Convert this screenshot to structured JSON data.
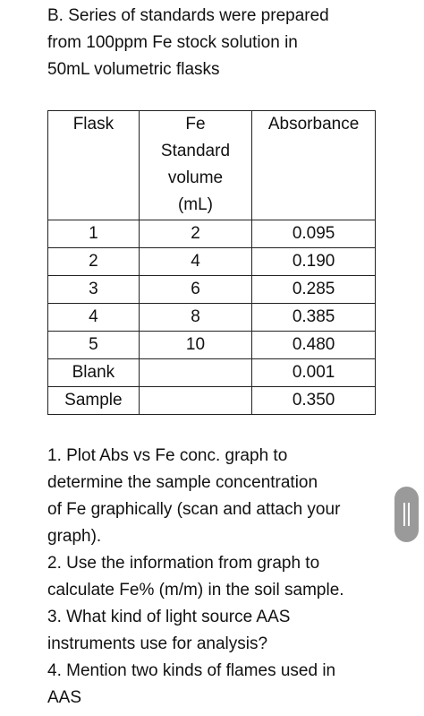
{
  "intro": {
    "lines": [
      "B. Series of standards were prepared",
      "from 100ppm Fe stock solution in",
      "50mL volumetric flasks"
    ]
  },
  "table": {
    "headers": [
      [
        "Flask"
      ],
      [
        "Fe",
        "Standard",
        "volume",
        "(mL)"
      ],
      [
        "Absorbance"
      ]
    ],
    "rows": [
      [
        "1",
        "2",
        "0.095"
      ],
      [
        "2",
        "4",
        "0.190"
      ],
      [
        "3",
        "6",
        "0.285"
      ],
      [
        "4",
        "8",
        "0.385"
      ],
      [
        "5",
        "10",
        "0.480"
      ],
      [
        "Blank",
        null,
        "0.001"
      ],
      [
        "Sample",
        null,
        "0.350"
      ]
    ]
  },
  "questions": [
    {
      "lines": [
        "1. Plot  Abs vs Fe conc. graph to",
        "determine the sample concentration",
        "of Fe graphically (scan and attach your",
        "graph)."
      ]
    },
    {
      "lines": [
        "2. Use the information from graph to",
        "calculate Fe% (m/m) in the soil sample."
      ]
    },
    {
      "lines": [
        "3. What kind of light source AAS",
        "instruments use for analysis?"
      ]
    },
    {
      "lines": [
        "4. Mention two kinds of flames used in",
        "AAS"
      ]
    }
  ]
}
